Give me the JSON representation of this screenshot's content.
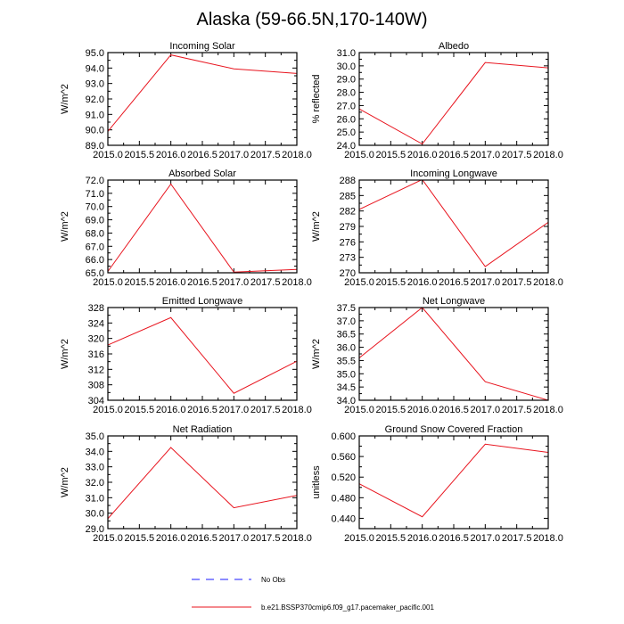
{
  "figure": {
    "title": "Alaska (59-66.5N,170-140W)",
    "series_color": "#e8141e",
    "obs_color": "#1a1aff"
  },
  "legend": {
    "obs_label": "No Obs",
    "model_label": "b.e21.BSSP370cmip6.f09_g17.pacemaker_pacific.001"
  },
  "chart_data": [
    {
      "type": "line",
      "title": "Incoming Solar",
      "ylabel": "W/m^2",
      "xlabel": "",
      "x": [
        2015.0,
        2016.0,
        2017.0,
        2018.0
      ],
      "values": [
        89.9,
        94.85,
        93.95,
        93.65
      ],
      "xlim": [
        2015.0,
        2018.0
      ],
      "ylim": [
        89.0,
        95.0
      ],
      "xticks": [
        "2015.0",
        "2015.5",
        "2016.0",
        "2016.5",
        "2017.0",
        "2017.5",
        "2018.0"
      ],
      "yticks": [
        "89.0",
        "90.0",
        "91.0",
        "92.0",
        "93.0",
        "94.0",
        "95.0"
      ]
    },
    {
      "type": "line",
      "title": "Albedo",
      "ylabel": "% reflected",
      "xlabel": "",
      "x": [
        2015.0,
        2016.0,
        2017.0,
        2018.0
      ],
      "values": [
        26.75,
        24.1,
        30.25,
        29.85
      ],
      "xlim": [
        2015.0,
        2018.0
      ],
      "ylim": [
        24.0,
        31.0
      ],
      "xticks": [
        "2015.0",
        "2015.5",
        "2016.0",
        "2016.5",
        "2017.0",
        "2017.5",
        "2018.0"
      ],
      "yticks": [
        "24.0",
        "25.0",
        "26.0",
        "27.0",
        "28.0",
        "29.0",
        "30.0",
        "31.0"
      ]
    },
    {
      "type": "line",
      "title": "Absorbed Solar",
      "ylabel": "W/m^2",
      "xlabel": "",
      "x": [
        2015.0,
        2016.0,
        2017.0,
        2018.0
      ],
      "values": [
        65.1,
        71.7,
        65.05,
        65.25
      ],
      "xlim": [
        2015.0,
        2018.0
      ],
      "ylim": [
        65.0,
        72.0
      ],
      "xticks": [
        "2015.0",
        "2015.5",
        "2016.0",
        "2016.5",
        "2017.0",
        "2017.5",
        "2018.0"
      ],
      "yticks": [
        "65.0",
        "66.0",
        "67.0",
        "68.0",
        "69.0",
        "70.0",
        "71.0",
        "72.0"
      ]
    },
    {
      "type": "line",
      "title": "Incoming Longwave",
      "ylabel": "W/m^2",
      "xlabel": "",
      "x": [
        2015.0,
        2016.0,
        2017.0,
        2018.0
      ],
      "values": [
        282.3,
        288.1,
        271.2,
        279.8
      ],
      "xlim": [
        2015.0,
        2018.0
      ],
      "ylim": [
        270.0,
        288.0
      ],
      "xticks": [
        "2015.0",
        "2015.5",
        "2016.0",
        "2016.5",
        "2017.0",
        "2017.5",
        "2018.0"
      ],
      "yticks": [
        "270",
        "273",
        "276",
        "279",
        "282",
        "285",
        "288"
      ]
    },
    {
      "type": "line",
      "title": "Emitted Longwave",
      "ylabel": "W/m^2",
      "xlabel": "",
      "x": [
        2015.0,
        2016.0,
        2017.0,
        2018.0
      ],
      "values": [
        318.3,
        325.4,
        305.8,
        314.1
      ],
      "xlim": [
        2015.0,
        2018.0
      ],
      "ylim": [
        304.0,
        328.0
      ],
      "xticks": [
        "2015.0",
        "2015.5",
        "2016.0",
        "2016.5",
        "2017.0",
        "2017.5",
        "2018.0"
      ],
      "yticks": [
        "304",
        "308",
        "312",
        "316",
        "320",
        "324",
        "328"
      ]
    },
    {
      "type": "line",
      "title": "Net Longwave",
      "ylabel": "W/m^2",
      "xlabel": "",
      "x": [
        2015.0,
        2016.0,
        2017.0,
        2018.0
      ],
      "values": [
        35.6,
        37.5,
        34.7,
        34.0
      ],
      "xlim": [
        2015.0,
        2018.0
      ],
      "ylim": [
        34.0,
        37.5
      ],
      "xticks": [
        "2015.0",
        "2015.5",
        "2016.0",
        "2016.5",
        "2017.0",
        "2017.5",
        "2018.0"
      ],
      "yticks": [
        "34.0",
        "34.5",
        "35.0",
        "35.5",
        "36.0",
        "36.5",
        "37.0",
        "37.5"
      ]
    },
    {
      "type": "line",
      "title": "Net Radiation",
      "ylabel": "W/m^2",
      "xlabel": "",
      "x": [
        2015.0,
        2016.0,
        2017.0,
        2018.0
      ],
      "values": [
        29.65,
        34.25,
        30.35,
        31.15
      ],
      "xlim": [
        2015.0,
        2018.0
      ],
      "ylim": [
        29.0,
        35.0
      ],
      "xticks": [
        "2015.0",
        "2015.5",
        "2016.0",
        "2016.5",
        "2017.0",
        "2017.5",
        "2018.0"
      ],
      "yticks": [
        "29.0",
        "30.0",
        "31.0",
        "32.0",
        "33.0",
        "34.0",
        "35.0"
      ]
    },
    {
      "type": "line",
      "title": "Ground Snow Covered Fraction",
      "ylabel": "unitless",
      "xlabel": "",
      "x": [
        2015.0,
        2016.0,
        2017.0,
        2018.0
      ],
      "values": [
        0.507,
        0.443,
        0.584,
        0.568
      ],
      "xlim": [
        2015.0,
        2018.0
      ],
      "ylim": [
        0.42,
        0.6
      ],
      "xticks": [
        "2015.0",
        "2015.5",
        "2016.0",
        "2016.5",
        "2017.0",
        "2017.5",
        "2018.0"
      ],
      "yticks": [
        "0.440",
        "0.480",
        "0.520",
        "0.560",
        "0.600"
      ],
      "ytick_values": [
        0.44,
        0.48,
        0.52,
        0.56,
        0.6
      ]
    }
  ]
}
